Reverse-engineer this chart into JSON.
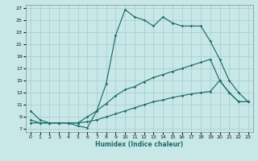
{
  "xlabel": "Humidex (Indice chaleur)",
  "bg_color": "#c8e8e8",
  "grid_color": "#aacece",
  "line_color": "#1e6b6b",
  "xlim": [
    -0.5,
    23.5
  ],
  "ylim": [
    6.5,
    27.5
  ],
  "xticks": [
    0,
    1,
    2,
    3,
    4,
    5,
    6,
    7,
    8,
    9,
    10,
    11,
    12,
    13,
    14,
    15,
    16,
    17,
    18,
    19,
    20,
    21,
    22,
    23
  ],
  "yticks": [
    7,
    9,
    11,
    13,
    15,
    17,
    19,
    21,
    23,
    25,
    27
  ],
  "curve1_x": [
    0,
    1,
    2,
    3,
    4,
    5,
    6,
    7,
    8,
    9,
    10,
    11,
    12,
    13,
    14,
    15,
    16,
    17,
    18,
    19,
    20,
    21,
    22,
    23
  ],
  "curve1_y": [
    10.0,
    8.5,
    8.0,
    8.0,
    8.0,
    7.5,
    7.2,
    10.0,
    14.5,
    22.5,
    26.7,
    25.5,
    25.0,
    24.0,
    25.5,
    24.5,
    24.0,
    24.0,
    24.0,
    21.5,
    18.5,
    15.0,
    13.0,
    11.5
  ],
  "curve2_x": [
    0,
    1,
    2,
    3,
    4,
    5,
    6,
    7,
    8,
    9,
    10,
    11,
    12,
    13,
    14,
    15,
    16,
    17,
    18,
    19,
    20,
    21,
    22,
    23
  ],
  "curve2_y": [
    8.5,
    8.0,
    8.0,
    8.0,
    8.0,
    8.0,
    9.0,
    10.0,
    11.2,
    12.5,
    13.5,
    14.0,
    14.8,
    15.5,
    16.0,
    16.5,
    17.0,
    17.5,
    18.0,
    18.5,
    15.0,
    13.0,
    11.5,
    11.5
  ],
  "curve3_x": [
    0,
    1,
    2,
    3,
    4,
    5,
    6,
    7,
    8,
    9,
    10,
    11,
    12,
    13,
    14,
    15,
    16,
    17,
    18,
    19,
    20,
    21,
    22,
    23
  ],
  "curve3_y": [
    8.0,
    8.0,
    8.0,
    8.0,
    8.0,
    8.0,
    8.2,
    8.5,
    9.0,
    9.5,
    10.0,
    10.5,
    11.0,
    11.5,
    11.8,
    12.2,
    12.5,
    12.8,
    13.0,
    13.2,
    15.0,
    13.0,
    11.5,
    11.5
  ]
}
